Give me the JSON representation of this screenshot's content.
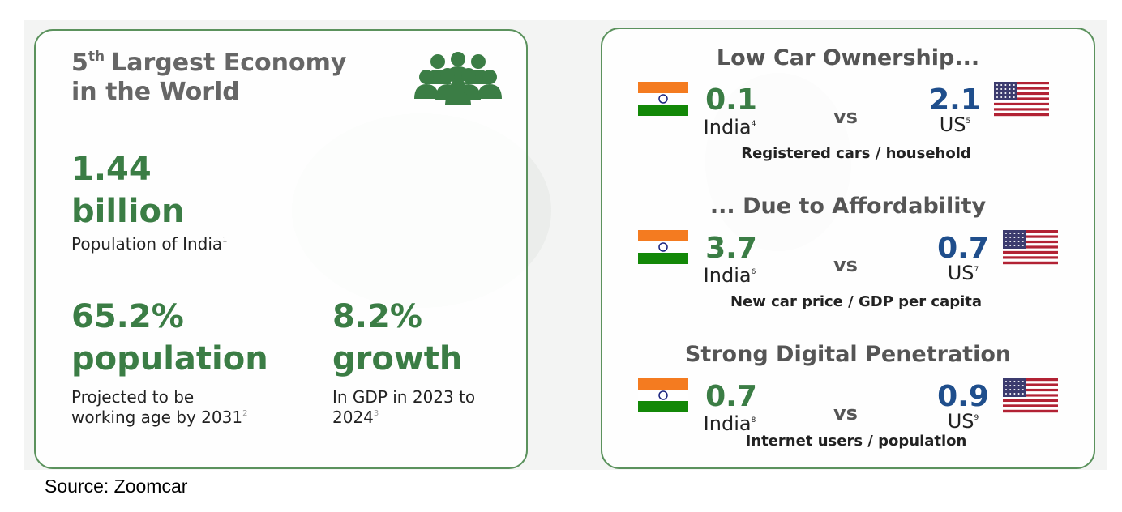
{
  "left_card": {
    "title": {
      "number": "5",
      "sup": "th",
      "line1": "Largest Economy",
      "line2": "in the World"
    },
    "stats": [
      {
        "value": "1.44",
        "unit": "billion",
        "lines": [
          "Population of India"
        ],
        "note": "1"
      },
      {
        "value": "65.2%",
        "unit": "population",
        "lines": [
          "Projected to be",
          "working age by 2031"
        ],
        "note": "2"
      },
      {
        "value": "8.2%",
        "unit": "growth",
        "lines": [
          "In GDP in 2023 to",
          "2024"
        ],
        "note": "3"
      }
    ]
  },
  "right_card": {
    "sections": [
      {
        "heading": "Low Car Ownership...",
        "india_value": "0.1",
        "india_label": "India",
        "india_note": "4",
        "vs": "vs",
        "us_value": "2.1",
        "us_label": "US",
        "us_note": "5",
        "caption": "Registered cars / household"
      },
      {
        "heading": "... Due to Affordability",
        "india_value": "3.7",
        "india_label": "India",
        "india_note": "6",
        "vs": "vs",
        "us_value": "0.7",
        "us_label": "US",
        "us_note": "7",
        "caption": "New car price / GDP per capita"
      },
      {
        "heading": "Strong Digital Penetration",
        "india_value": "0.7",
        "india_label": "India",
        "india_note": "8",
        "vs": "vs",
        "us_value": "0.9",
        "us_label": "US",
        "us_note": "9",
        "caption": "Internet users / population"
      }
    ]
  },
  "source": "Source: Zoomcar"
}
